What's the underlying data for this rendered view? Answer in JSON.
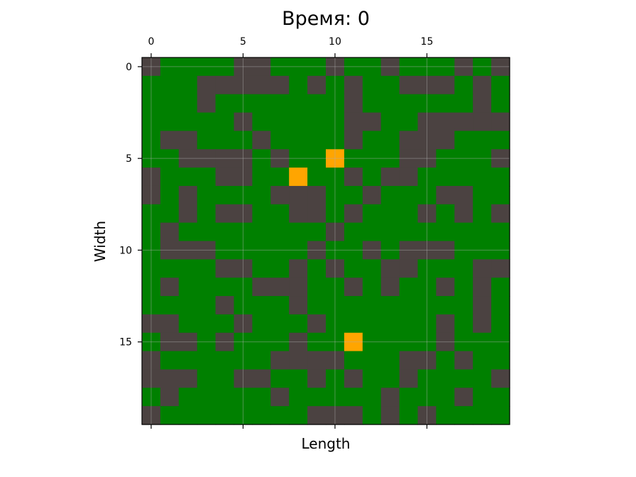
{
  "chart_data": {
    "type": "heatmap",
    "title": "Время: 0",
    "xlabel": "Length",
    "ylabel": "Width",
    "rows": 20,
    "cols": 20,
    "x_ticks": [
      0,
      5,
      10,
      15
    ],
    "y_ticks": [
      0,
      5,
      10,
      15
    ],
    "x_tick_labels": [
      "0",
      "5",
      "10",
      "15"
    ],
    "y_tick_labels": [
      "0",
      "5",
      "10",
      "15"
    ],
    "x_tick_position": "top",
    "grid": true,
    "legend": "none",
    "colors": {
      "0": "#008000",
      "1": "#4b4241",
      "2": "#ffa500"
    },
    "grid_values": [
      [
        1,
        0,
        0,
        0,
        0,
        1,
        1,
        0,
        0,
        0,
        1,
        0,
        0,
        1,
        0,
        0,
        0,
        1,
        0,
        1
      ],
      [
        0,
        0,
        0,
        1,
        1,
        1,
        1,
        1,
        0,
        1,
        0,
        1,
        0,
        0,
        1,
        1,
        1,
        0,
        1,
        0
      ],
      [
        0,
        0,
        0,
        1,
        0,
        0,
        0,
        0,
        0,
        0,
        0,
        1,
        0,
        0,
        0,
        0,
        0,
        0,
        1,
        0
      ],
      [
        0,
        0,
        0,
        0,
        0,
        1,
        0,
        0,
        0,
        0,
        0,
        1,
        1,
        0,
        0,
        1,
        1,
        1,
        1,
        1
      ],
      [
        0,
        1,
        1,
        0,
        0,
        0,
        1,
        0,
        0,
        0,
        0,
        1,
        0,
        0,
        1,
        1,
        1,
        0,
        0,
        0
      ],
      [
        0,
        0,
        1,
        1,
        1,
        1,
        0,
        1,
        0,
        0,
        2,
        0,
        0,
        0,
        1,
        1,
        0,
        0,
        0,
        1
      ],
      [
        1,
        0,
        0,
        0,
        1,
        1,
        0,
        0,
        2,
        0,
        0,
        1,
        0,
        1,
        1,
        0,
        0,
        0,
        0,
        0
      ],
      [
        1,
        0,
        1,
        0,
        0,
        0,
        0,
        1,
        1,
        1,
        0,
        0,
        1,
        0,
        0,
        0,
        1,
        1,
        0,
        0
      ],
      [
        0,
        0,
        1,
        0,
        1,
        1,
        0,
        0,
        1,
        1,
        0,
        1,
        0,
        0,
        0,
        1,
        0,
        1,
        0,
        1
      ],
      [
        0,
        1,
        0,
        0,
        0,
        0,
        0,
        0,
        0,
        0,
        1,
        0,
        0,
        0,
        0,
        0,
        0,
        0,
        0,
        0
      ],
      [
        0,
        1,
        1,
        1,
        0,
        0,
        0,
        0,
        0,
        1,
        0,
        0,
        1,
        0,
        1,
        1,
        1,
        0,
        0,
        0
      ],
      [
        0,
        0,
        0,
        0,
        1,
        1,
        0,
        0,
        1,
        0,
        1,
        0,
        0,
        1,
        1,
        0,
        0,
        0,
        1,
        1
      ],
      [
        0,
        1,
        0,
        0,
        0,
        0,
        1,
        1,
        1,
        0,
        0,
        1,
        0,
        1,
        0,
        0,
        1,
        0,
        1,
        0
      ],
      [
        0,
        0,
        0,
        0,
        1,
        0,
        0,
        0,
        1,
        0,
        0,
        0,
        0,
        0,
        0,
        0,
        0,
        0,
        1,
        0
      ],
      [
        1,
        1,
        0,
        0,
        0,
        1,
        0,
        0,
        0,
        1,
        0,
        0,
        0,
        0,
        0,
        0,
        1,
        0,
        1,
        0
      ],
      [
        0,
        1,
        1,
        0,
        1,
        0,
        0,
        0,
        1,
        0,
        0,
        2,
        0,
        0,
        0,
        0,
        1,
        0,
        0,
        0
      ],
      [
        1,
        0,
        0,
        0,
        0,
        0,
        0,
        1,
        1,
        1,
        1,
        0,
        0,
        0,
        1,
        1,
        0,
        1,
        0,
        0
      ],
      [
        1,
        1,
        1,
        0,
        0,
        1,
        1,
        0,
        0,
        1,
        0,
        1,
        0,
        0,
        1,
        0,
        0,
        0,
        0,
        1
      ],
      [
        0,
        1,
        0,
        0,
        0,
        0,
        0,
        1,
        0,
        0,
        0,
        0,
        0,
        1,
        0,
        0,
        0,
        1,
        0,
        0
      ],
      [
        1,
        0,
        0,
        0,
        0,
        0,
        0,
        0,
        0,
        1,
        1,
        1,
        0,
        1,
        0,
        1,
        0,
        0,
        0,
        0
      ]
    ]
  }
}
